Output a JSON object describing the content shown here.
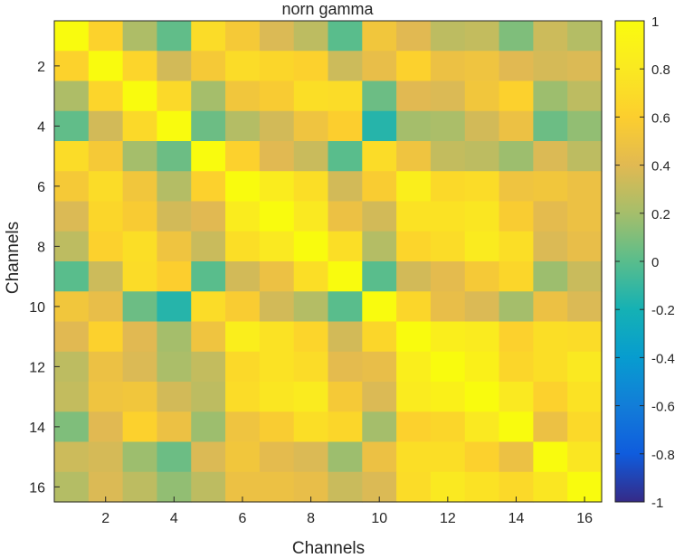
{
  "chart_data": {
    "type": "heatmap",
    "title": "norn gamma",
    "xlabel": "Channels",
    "ylabel": "Channels",
    "x": [
      1,
      2,
      3,
      4,
      5,
      6,
      7,
      8,
      9,
      10,
      11,
      12,
      13,
      14,
      15,
      16
    ],
    "y": [
      1,
      2,
      3,
      4,
      5,
      6,
      7,
      8,
      9,
      10,
      11,
      12,
      13,
      14,
      15,
      16
    ],
    "xticks": [
      "2",
      "4",
      "6",
      "8",
      "10",
      "12",
      "14",
      "16"
    ],
    "yticks": [
      "2",
      "4",
      "6",
      "8",
      "10",
      "12",
      "14",
      "16"
    ],
    "clim": [
      -1,
      1
    ],
    "colorbar_ticks": [
      "1",
      "0.8",
      "0.6",
      "0.4",
      "0.2",
      "0",
      "-0.2",
      "-0.4",
      "-0.6",
      "-0.8",
      "-1"
    ],
    "colormap": "parula",
    "values": [
      [
        1.0,
        0.63,
        0.23,
        0.02,
        0.7,
        0.55,
        0.38,
        0.28,
        0.0,
        0.52,
        0.4,
        0.28,
        0.3,
        0.1,
        0.33,
        0.25
      ],
      [
        0.63,
        1.0,
        0.65,
        0.35,
        0.55,
        0.7,
        0.66,
        0.62,
        0.33,
        0.45,
        0.62,
        0.48,
        0.5,
        0.4,
        0.36,
        0.38
      ],
      [
        0.23,
        0.65,
        1.0,
        0.68,
        0.2,
        0.52,
        0.57,
        0.72,
        0.7,
        0.05,
        0.4,
        0.38,
        0.52,
        0.62,
        0.18,
        0.28
      ],
      [
        0.02,
        0.35,
        0.68,
        1.0,
        0.05,
        0.25,
        0.35,
        0.5,
        0.6,
        -0.15,
        0.2,
        0.22,
        0.35,
        0.48,
        0.05,
        0.15
      ],
      [
        0.7,
        0.55,
        0.2,
        0.05,
        1.0,
        0.62,
        0.4,
        0.32,
        0.0,
        0.7,
        0.5,
        0.3,
        0.28,
        0.18,
        0.38,
        0.28
      ],
      [
        0.55,
        0.7,
        0.52,
        0.25,
        0.62,
        1.0,
        0.83,
        0.72,
        0.35,
        0.58,
        0.85,
        0.68,
        0.7,
        0.5,
        0.52,
        0.48
      ],
      [
        0.38,
        0.66,
        0.57,
        0.35,
        0.4,
        0.83,
        1.0,
        0.8,
        0.48,
        0.35,
        0.75,
        0.75,
        0.78,
        0.58,
        0.42,
        0.48
      ],
      [
        0.28,
        0.62,
        0.72,
        0.5,
        0.32,
        0.72,
        0.8,
        1.0,
        0.72,
        0.25,
        0.65,
        0.7,
        0.82,
        0.72,
        0.38,
        0.45
      ],
      [
        0.0,
        0.33,
        0.7,
        0.6,
        0.0,
        0.35,
        0.48,
        0.72,
        1.0,
        0.0,
        0.35,
        0.42,
        0.55,
        0.66,
        0.18,
        0.32
      ],
      [
        0.52,
        0.45,
        0.05,
        -0.15,
        0.7,
        0.58,
        0.35,
        0.25,
        0.0,
        1.0,
        0.66,
        0.45,
        0.38,
        0.2,
        0.48,
        0.38
      ],
      [
        0.4,
        0.62,
        0.4,
        0.2,
        0.5,
        0.85,
        0.75,
        0.65,
        0.35,
        0.66,
        1.0,
        0.85,
        0.82,
        0.62,
        0.72,
        0.7
      ],
      [
        0.28,
        0.48,
        0.38,
        0.22,
        0.3,
        0.68,
        0.75,
        0.7,
        0.42,
        0.45,
        0.85,
        1.0,
        0.88,
        0.66,
        0.72,
        0.8
      ],
      [
        0.3,
        0.5,
        0.52,
        0.35,
        0.28,
        0.7,
        0.78,
        0.82,
        0.55,
        0.38,
        0.82,
        0.88,
        1.0,
        0.8,
        0.62,
        0.75
      ],
      [
        0.1,
        0.4,
        0.62,
        0.48,
        0.18,
        0.5,
        0.58,
        0.72,
        0.66,
        0.2,
        0.62,
        0.66,
        0.8,
        1.0,
        0.48,
        0.68
      ],
      [
        0.33,
        0.36,
        0.18,
        0.05,
        0.38,
        0.52,
        0.42,
        0.38,
        0.18,
        0.48,
        0.72,
        0.72,
        0.62,
        0.48,
        1.0,
        0.78
      ],
      [
        0.25,
        0.38,
        0.28,
        0.15,
        0.28,
        0.48,
        0.48,
        0.45,
        0.32,
        0.38,
        0.7,
        0.8,
        0.75,
        0.68,
        0.78,
        1.0
      ]
    ]
  }
}
